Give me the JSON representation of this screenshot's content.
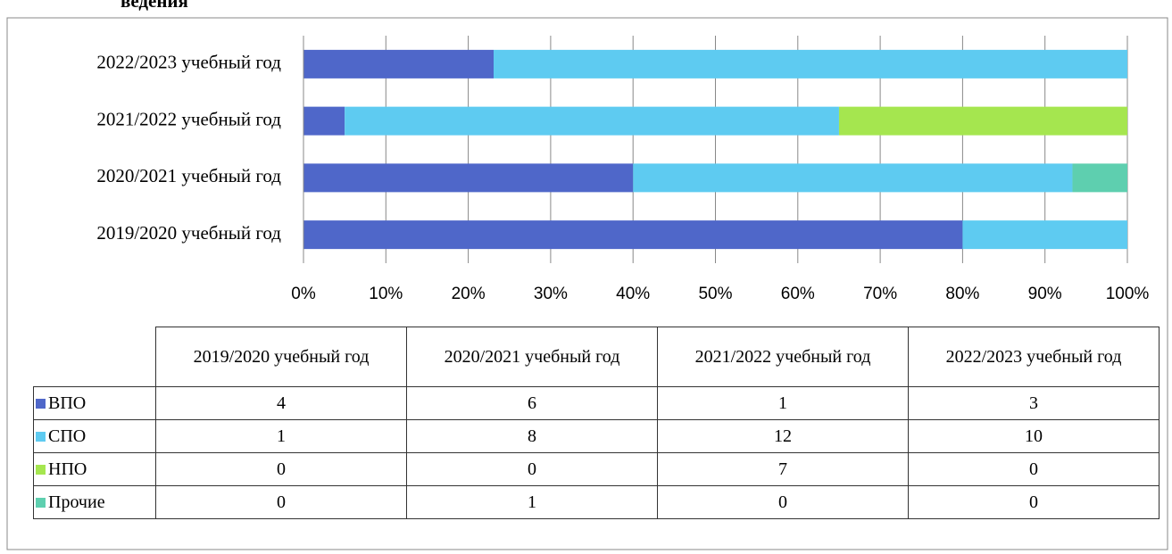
{
  "chart_data": {
    "type": "bar_stacked_100_horizontal",
    "title": "ведения",
    "categories": [
      "2019/2020 учебный год",
      "2020/2021 учебный год",
      "2021/2022 учебный год",
      "2022/2023 учебный год"
    ],
    "series": [
      {
        "name": "ВПО",
        "color": "#4f67c9",
        "values": [
          4,
          6,
          1,
          3
        ]
      },
      {
        "name": "СПО",
        "color": "#5ecbf1",
        "values": [
          1,
          8,
          12,
          10
        ]
      },
      {
        "name": "НПО",
        "color": "#a5e64f",
        "values": [
          0,
          0,
          7,
          0
        ]
      },
      {
        "name": "Прочие",
        "color": "#5ecfaf",
        "values": [
          0,
          1,
          0,
          0
        ]
      }
    ],
    "xlim": [
      0,
      100
    ],
    "xticks": [
      {
        "value": 0,
        "label": "0%"
      },
      {
        "value": 10,
        "label": "10%"
      },
      {
        "value": 20,
        "label": "20%"
      },
      {
        "value": 30,
        "label": "30%"
      },
      {
        "value": 40,
        "label": "40%"
      },
      {
        "value": 50,
        "label": "50%"
      },
      {
        "value": 60,
        "label": "60%"
      },
      {
        "value": 70,
        "label": "70%"
      },
      {
        "value": 80,
        "label": "80%"
      },
      {
        "value": 90,
        "label": "90%"
      },
      {
        "value": 100,
        "label": "100%"
      }
    ],
    "grid": true
  }
}
